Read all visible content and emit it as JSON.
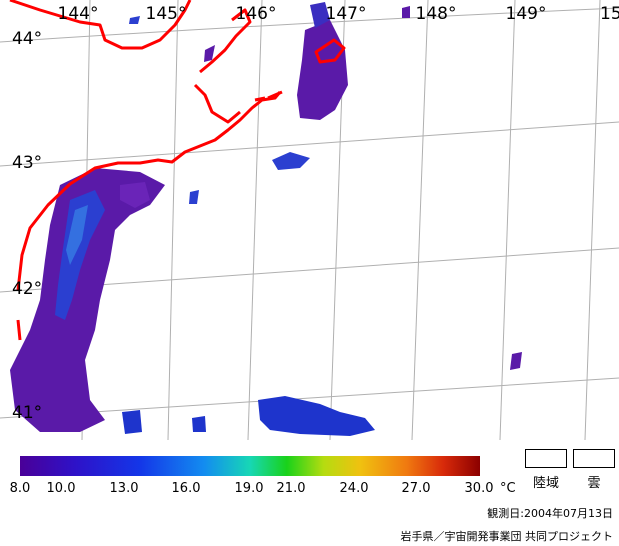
{
  "map": {
    "lon_labels": [
      "144°",
      "145°",
      "146°",
      "147°",
      "148°",
      "149°",
      "15"
    ],
    "lat_labels": [
      "44°",
      "43°",
      "42°",
      "41°"
    ],
    "coastline_color": "#ff0000",
    "graticule_color": "#b0b0b0"
  },
  "colorbar": {
    "ticks": [
      "8.0",
      "10.0",
      "13.0",
      "16.0",
      "19.0",
      "21.0",
      "24.0",
      "27.0",
      "30.0"
    ],
    "unit": "°C",
    "min": 8.0,
    "max": 30.0
  },
  "legend": {
    "land_label": "陸域",
    "cloud_label": "雲"
  },
  "observation_date": "観測日:2004年07月13日",
  "credit": "岩手県／宇宙開発事業団 共同プロジェクト"
}
